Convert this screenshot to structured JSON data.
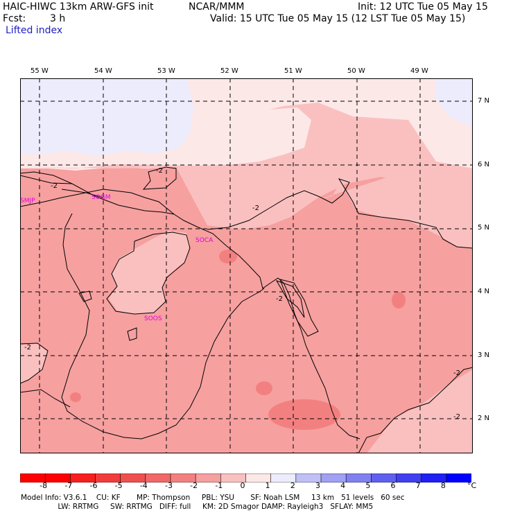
{
  "header": {
    "model": "HAIC-HIWC 13km ARW-GFS init",
    "org": "NCAR/MMM",
    "init": "Init: 12 UTC Tue 05 May 15",
    "fcst_label": "Fcst:",
    "fcst_value": "3 h",
    "valid": "Valid: 15 UTC Tue 05 May 15 (12 LST Tue 05 May 15)",
    "field": "Lifted index"
  },
  "map": {
    "longitudes": [
      "55 W",
      "54 W",
      "53 W",
      "52 W",
      "51 W",
      "50 W",
      "49 W"
    ],
    "latitudes": [
      "7 N",
      "6 N",
      "5 N",
      "4 N",
      "3 N",
      "2 N"
    ],
    "contour_labels": [
      "-2",
      "-2",
      "-2",
      "-2",
      "-2",
      "-2",
      "-2"
    ],
    "stations": [
      "SMJP",
      "SOGM",
      "SOCA",
      "SOOS"
    ]
  },
  "colorbar": {
    "ticks": [
      "-8",
      "-7",
      "-6",
      "-5",
      "-4",
      "-3",
      "-2",
      "-1",
      "0",
      "1",
      "2",
      "3",
      "4",
      "5",
      "6",
      "7",
      "8"
    ],
    "unit": "°C",
    "colors": [
      "#ff0000",
      "#f81f1f",
      "#f23c3c",
      "#ee5050",
      "#f06868",
      "#f38080",
      "#f6a0a0",
      "#fac0c0",
      "#fde8e8",
      "#ececfc",
      "#c0c0f6",
      "#a0a0f4",
      "#8080f0",
      "#6060ee",
      "#4040f0",
      "#2020f4",
      "#0000ff"
    ]
  },
  "footer": {
    "line1": "Model Info: V3.6.1    CU: KF       MP: Thompson     PBL: YSU       SF: Noah LSM     13 km   51 levels   60 sec",
    "line2": "                LW: RRTMG     SW: RRTMG   DIFF: full     KM: 2D Smagor DAMP: Rayleigh3   SFLAY: MM5"
  }
}
